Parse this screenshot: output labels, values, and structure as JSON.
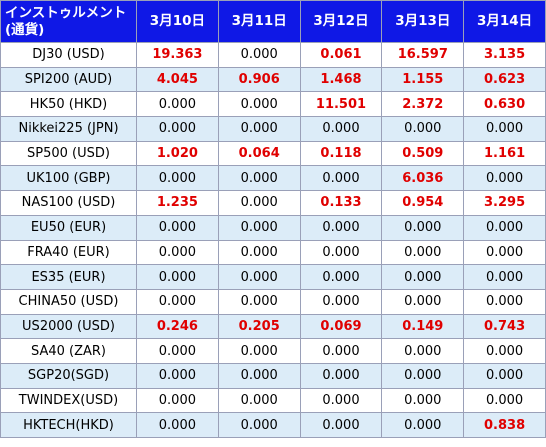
{
  "header": {
    "instrument_line1": "インストゥルメント",
    "instrument_line2": "(通貨)",
    "dates": [
      "3月10日",
      "3月11日",
      "3月12日",
      "3月13日",
      "3月14日"
    ]
  },
  "colors": {
    "header_bg": "#0f18e6",
    "header_text": "#ffffff",
    "row_alt_bg": "#dcecf8",
    "highlight_value": "#e00000"
  },
  "rows": [
    {
      "instrument": "DJ30 (USD)",
      "values": [
        "19.363",
        "0.000",
        "0.061",
        "16.597",
        "3.135"
      ]
    },
    {
      "instrument": "SPI200 (AUD)",
      "values": [
        "4.045",
        "0.906",
        "1.468",
        "1.155",
        "0.623"
      ]
    },
    {
      "instrument": "HK50 (HKD)",
      "values": [
        "0.000",
        "0.000",
        "11.501",
        "2.372",
        "0.630"
      ]
    },
    {
      "instrument": "Nikkei225 (JPN)",
      "values": [
        "0.000",
        "0.000",
        "0.000",
        "0.000",
        "0.000"
      ]
    },
    {
      "instrument": "SP500 (USD)",
      "values": [
        "1.020",
        "0.064",
        "0.118",
        "0.509",
        "1.161"
      ]
    },
    {
      "instrument": "UK100 (GBP)",
      "values": [
        "0.000",
        "0.000",
        "0.000",
        "6.036",
        "0.000"
      ]
    },
    {
      "instrument": "NAS100 (USD)",
      "values": [
        "1.235",
        "0.000",
        "0.133",
        "0.954",
        "3.295"
      ]
    },
    {
      "instrument": "EU50 (EUR)",
      "values": [
        "0.000",
        "0.000",
        "0.000",
        "0.000",
        "0.000"
      ]
    },
    {
      "instrument": "FRA40 (EUR)",
      "values": [
        "0.000",
        "0.000",
        "0.000",
        "0.000",
        "0.000"
      ]
    },
    {
      "instrument": "ES35 (EUR)",
      "values": [
        "0.000",
        "0.000",
        "0.000",
        "0.000",
        "0.000"
      ]
    },
    {
      "instrument": "CHINA50 (USD)",
      "values": [
        "0.000",
        "0.000",
        "0.000",
        "0.000",
        "0.000"
      ]
    },
    {
      "instrument": "US2000 (USD)",
      "values": [
        "0.246",
        "0.205",
        "0.069",
        "0.149",
        "0.743"
      ]
    },
    {
      "instrument": "SA40 (ZAR)",
      "values": [
        "0.000",
        "0.000",
        "0.000",
        "0.000",
        "0.000"
      ]
    },
    {
      "instrument": "SGP20(SGD)",
      "values": [
        "0.000",
        "0.000",
        "0.000",
        "0.000",
        "0.000"
      ]
    },
    {
      "instrument": "TWINDEX(USD)",
      "values": [
        "0.000",
        "0.000",
        "0.000",
        "0.000",
        "0.000"
      ]
    },
    {
      "instrument": "HKTECH(HKD)",
      "values": [
        "0.000",
        "0.000",
        "0.000",
        "0.000",
        "0.838"
      ]
    }
  ]
}
